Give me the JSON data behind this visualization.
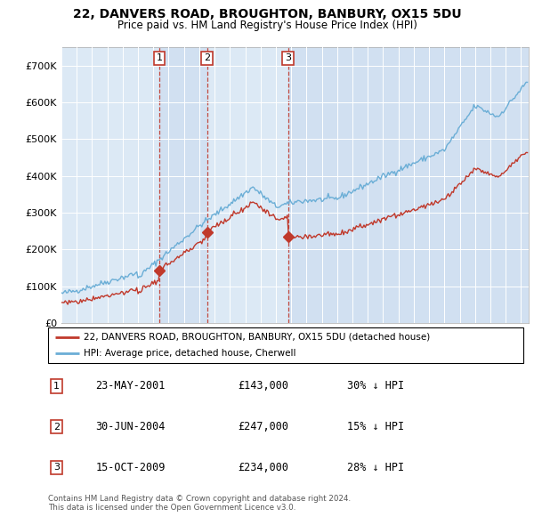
{
  "title": "22, DANVERS ROAD, BROUGHTON, BANBURY, OX15 5DU",
  "subtitle": "Price paid vs. HM Land Registry's House Price Index (HPI)",
  "plot_bg_color": "#dce9f5",
  "hpi_color": "#6baed6",
  "price_color": "#c0392b",
  "vline_color": "#c0392b",
  "shade_color": "#c8d8ee",
  "purchases": [
    {
      "label": "1",
      "date_x": 2001.39,
      "price": 143000
    },
    {
      "label": "2",
      "date_x": 2004.5,
      "price": 247000
    },
    {
      "label": "3",
      "date_x": 2009.79,
      "price": 234000
    }
  ],
  "table_rows": [
    {
      "num": "1",
      "date": "23-MAY-2001",
      "price": "£143,000",
      "pct": "30% ↓ HPI"
    },
    {
      "num": "2",
      "date": "30-JUN-2004",
      "price": "£247,000",
      "pct": "15% ↓ HPI"
    },
    {
      "num": "3",
      "date": "15-OCT-2009",
      "price": "£234,000",
      "pct": "28% ↓ HPI"
    }
  ],
  "legend1": "22, DANVERS ROAD, BROUGHTON, BANBURY, OX15 5DU (detached house)",
  "legend2": "HPI: Average price, detached house, Cherwell",
  "footer": "Contains HM Land Registry data © Crown copyright and database right 2024.\nThis data is licensed under the Open Government Licence v3.0.",
  "ylim": [
    0,
    750000
  ],
  "yticks": [
    0,
    100000,
    200000,
    300000,
    400000,
    500000,
    600000,
    700000
  ],
  "ytick_labels": [
    "£0",
    "£100K",
    "£200K",
    "£300K",
    "£400K",
    "£500K",
    "£600K",
    "£700K"
  ],
  "xlim_start": 1995.0,
  "xlim_end": 2025.5
}
